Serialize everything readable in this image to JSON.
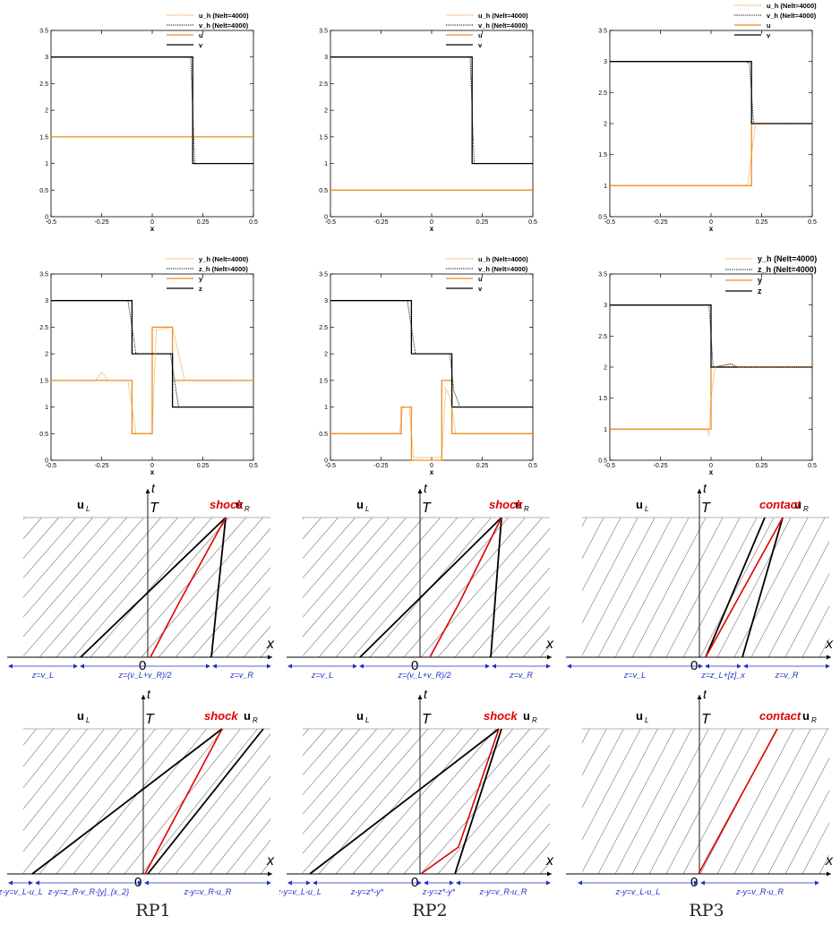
{
  "colors": {
    "numerical": "#f08c1e",
    "exact": "#f08c1e",
    "black": "#000000",
    "wave_red": "#e00000",
    "region_blue": "#1c2fc9",
    "grey": "#777777"
  },
  "chart_data": [
    {
      "id": "p11",
      "type": "line",
      "xlim": [
        -0.5,
        0.5
      ],
      "ylim": [
        0,
        3.5
      ],
      "xlabel": "x",
      "xticks": [
        "-0.5",
        "-0.25",
        "0",
        "0.25",
        "0.5"
      ],
      "yticks": [
        "0",
        "0.5",
        "1",
        "1.5",
        "2",
        "2.5",
        "3",
        "3.5"
      ],
      "legend": [
        "u_h (Nelt=4000)",
        "v_h (Nelt=4000)",
        "u",
        "v"
      ],
      "series": [
        {
          "name": "u",
          "role": "exact",
          "color": "orange",
          "points": [
            [
              -0.5,
              1.5
            ],
            [
              0.5,
              1.5
            ]
          ]
        },
        {
          "name": "v",
          "role": "exact",
          "color": "black",
          "points": [
            [
              -0.5,
              3
            ],
            [
              0.2,
              3
            ],
            [
              0.2,
              1
            ],
            [
              0.5,
              1
            ]
          ]
        },
        {
          "name": "u_h (Nelt=4000)",
          "role": "num",
          "color": "orange",
          "points": [
            [
              -0.5,
              1.5
            ],
            [
              0.5,
              1.5
            ]
          ]
        },
        {
          "name": "v_h (Nelt=4000)",
          "role": "num",
          "color": "black",
          "points": [
            [
              -0.5,
              3
            ],
            [
              0.19,
              3
            ],
            [
              0.2,
              2
            ],
            [
              0.21,
              1
            ],
            [
              0.5,
              1
            ]
          ]
        }
      ]
    },
    {
      "id": "p12",
      "type": "line",
      "xlim": [
        -0.5,
        0.5
      ],
      "ylim": [
        0,
        3.5
      ],
      "xlabel": "x",
      "xticks": [
        "-0.5",
        "-0.25",
        "0",
        "0.25",
        "0.5"
      ],
      "yticks": [
        "0",
        "0.5",
        "1",
        "1.5",
        "2",
        "2.5",
        "3",
        "3.5"
      ],
      "legend": [
        "u_h (Nelt=4000)",
        "v_h (Nelt=4000)",
        "u",
        "v"
      ],
      "series": [
        {
          "name": "u",
          "role": "exact",
          "color": "orange",
          "points": [
            [
              -0.5,
              0.5
            ],
            [
              0.5,
              0.5
            ]
          ]
        },
        {
          "name": "v",
          "role": "exact",
          "color": "black",
          "points": [
            [
              -0.5,
              3
            ],
            [
              0.2,
              3
            ],
            [
              0.2,
              1
            ],
            [
              0.5,
              1
            ]
          ]
        },
        {
          "name": "u_h (Nelt=4000)",
          "role": "num",
          "color": "orange",
          "points": [
            [
              -0.5,
              0.5
            ],
            [
              0.5,
              0.5
            ]
          ]
        },
        {
          "name": "v_h (Nelt=4000)",
          "role": "num",
          "color": "black",
          "points": [
            [
              -0.5,
              3
            ],
            [
              0.19,
              3
            ],
            [
              0.2,
              2
            ],
            [
              0.21,
              1
            ],
            [
              0.5,
              1
            ]
          ]
        }
      ]
    },
    {
      "id": "p13",
      "type": "line",
      "xlim": [
        -0.5,
        0.5
      ],
      "ylim": [
        0.5,
        3.5
      ],
      "xlabel": "x",
      "xticks": [
        "-0.5",
        "-0.25",
        "0",
        "0.25",
        "0.5"
      ],
      "yticks": [
        "0.5",
        "1",
        "1.5",
        "2",
        "2.5",
        "3",
        "3.5"
      ],
      "legend": [
        "u_h (Nelt=4000)",
        "v_h (Nelt=4000)",
        "u",
        "v"
      ],
      "series": [
        {
          "name": "u",
          "role": "exact",
          "color": "orange",
          "points": [
            [
              -0.5,
              1
            ],
            [
              0.2,
              1
            ],
            [
              0.2,
              2
            ],
            [
              0.5,
              2
            ]
          ]
        },
        {
          "name": "v",
          "role": "exact",
          "color": "black",
          "points": [
            [
              -0.5,
              3
            ],
            [
              0.2,
              3
            ],
            [
              0.2,
              2
            ],
            [
              0.5,
              2
            ]
          ]
        },
        {
          "name": "u_h (Nelt=4000)",
          "role": "num",
          "color": "orange",
          "points": [
            [
              -0.5,
              1
            ],
            [
              0.18,
              1
            ],
            [
              0.2,
              1.5
            ],
            [
              0.22,
              2
            ],
            [
              0.5,
              2
            ]
          ]
        },
        {
          "name": "v_h (Nelt=4000)",
          "role": "num",
          "color": "black",
          "points": [
            [
              -0.5,
              3
            ],
            [
              0.17,
              3
            ],
            [
              0.19,
              2.97
            ],
            [
              0.21,
              2
            ],
            [
              0.5,
              2
            ]
          ]
        }
      ]
    },
    {
      "id": "p21",
      "type": "line",
      "xlim": [
        -0.5,
        0.5
      ],
      "ylim": [
        0,
        3.5
      ],
      "xlabel": "x",
      "xticks": [
        "-0.5",
        "-0.25",
        "0",
        "0.25",
        "0.5"
      ],
      "yticks": [
        "0",
        "0.5",
        "1",
        "1.5",
        "2",
        "2.5",
        "3",
        "3.5"
      ],
      "legend": [
        "y_h (Nelt=4000)",
        "z_h (Nelt=4000)",
        "y",
        "z"
      ],
      "series": [
        {
          "name": "y",
          "role": "exact",
          "color": "orange",
          "points": [
            [
              -0.5,
              1.5
            ],
            [
              -0.1,
              1.5
            ],
            [
              -0.1,
              0.5
            ],
            [
              0,
              0.5
            ],
            [
              0,
              2.5
            ],
            [
              0.1,
              2.5
            ],
            [
              0.1,
              1.5
            ],
            [
              0.5,
              1.5
            ]
          ]
        },
        {
          "name": "z",
          "role": "exact",
          "color": "black",
          "points": [
            [
              -0.5,
              3
            ],
            [
              -0.1,
              3
            ],
            [
              -0.1,
              2
            ],
            [
              0.1,
              2
            ],
            [
              0.1,
              1
            ],
            [
              0.5,
              1
            ]
          ]
        },
        {
          "name": "y_h (Nelt=4000)",
          "role": "num",
          "color": "orange",
          "points": [
            [
              -0.5,
              1.5
            ],
            [
              -0.28,
              1.5
            ],
            [
              -0.25,
              1.65
            ],
            [
              -0.22,
              1.5
            ],
            [
              -0.12,
              1.5
            ],
            [
              -0.1,
              1
            ],
            [
              -0.08,
              0.5
            ],
            [
              0,
              0.5
            ],
            [
              0.01,
              1.5
            ],
            [
              0.02,
              2.45
            ],
            [
              0.1,
              2.5
            ],
            [
              0.13,
              2
            ],
            [
              0.16,
              1.5
            ],
            [
              0.5,
              1.5
            ]
          ]
        },
        {
          "name": "z_h (Nelt=4000)",
          "role": "num",
          "color": "black",
          "points": [
            [
              -0.5,
              3
            ],
            [
              -0.12,
              3
            ],
            [
              -0.1,
              2.5
            ],
            [
              -0.08,
              2
            ],
            [
              0.09,
              2
            ],
            [
              0.11,
              1.5
            ],
            [
              0.13,
              1
            ],
            [
              0.5,
              1
            ]
          ]
        }
      ]
    },
    {
      "id": "p22",
      "type": "line",
      "xlim": [
        -0.5,
        0.5
      ],
      "ylim": [
        0,
        3.5
      ],
      "xlabel": "x",
      "xticks": [
        "-0.5",
        "-0.25",
        "0",
        "0.25",
        "0.5"
      ],
      "yticks": [
        "0",
        "0.5",
        "1",
        "1.5",
        "2",
        "2.5",
        "3",
        "3.5"
      ],
      "legend": [
        "u_h (Nelt=4000)",
        "v_h (Nelt=4000)",
        "u",
        "v"
      ],
      "series": [
        {
          "name": "u",
          "role": "exact",
          "color": "orange",
          "points": [
            [
              -0.5,
              0.5
            ],
            [
              -0.15,
              0.5
            ],
            [
              -0.15,
              1
            ],
            [
              -0.1,
              1
            ],
            [
              -0.1,
              0
            ],
            [
              0.05,
              0
            ],
            [
              0.05,
              1.5
            ],
            [
              0.1,
              1.5
            ],
            [
              0.1,
              0.5
            ],
            [
              0.5,
              0.5
            ]
          ]
        },
        {
          "name": "v",
          "role": "exact",
          "color": "black",
          "points": [
            [
              -0.5,
              3
            ],
            [
              -0.1,
              3
            ],
            [
              -0.1,
              2
            ],
            [
              0.1,
              2
            ],
            [
              0.1,
              1
            ],
            [
              0.5,
              1
            ]
          ]
        },
        {
          "name": "u_h (Nelt=4000)",
          "role": "num",
          "color": "orange",
          "points": [
            [
              -0.5,
              0.5
            ],
            [
              -0.16,
              0.5
            ],
            [
              -0.14,
              1
            ],
            [
              -0.11,
              1
            ],
            [
              -0.09,
              0.05
            ],
            [
              0.05,
              0.05
            ],
            [
              0.07,
              1.35
            ],
            [
              0.09,
              1.2
            ],
            [
              0.12,
              0.5
            ],
            [
              0.5,
              0.5
            ]
          ]
        },
        {
          "name": "v_h (Nelt=4000)",
          "role": "num",
          "color": "black",
          "points": [
            [
              -0.5,
              3
            ],
            [
              -0.12,
              3
            ],
            [
              -0.1,
              2.5
            ],
            [
              -0.08,
              2
            ],
            [
              0.09,
              2
            ],
            [
              0.11,
              1.3
            ],
            [
              0.14,
              1
            ],
            [
              0.5,
              1
            ]
          ]
        }
      ]
    },
    {
      "id": "p23",
      "type": "line",
      "xlim": [
        -0.5,
        0.5
      ],
      "ylim": [
        0.5,
        3.5
      ],
      "xlabel": "x",
      "xticks": [
        "-0.5",
        "-0.25",
        "0",
        "0.25",
        "0.5"
      ],
      "yticks": [
        "0.5",
        "1",
        "1.5",
        "2",
        "2.5",
        "3",
        "3.5"
      ],
      "legend": [
        "y_h (Nelt=4000)",
        "z_h (Nelt=4000)",
        "y",
        "z"
      ],
      "series": [
        {
          "name": "y",
          "role": "exact",
          "color": "orange",
          "points": [
            [
              -0.5,
              1
            ],
            [
              0,
              1
            ],
            [
              0,
              2
            ],
            [
              0.5,
              2
            ]
          ]
        },
        {
          "name": "z",
          "role": "exact",
          "color": "black",
          "points": [
            [
              -0.5,
              3
            ],
            [
              0,
              3
            ],
            [
              0,
              2
            ],
            [
              0.5,
              2
            ]
          ]
        },
        {
          "name": "y_h (Nelt=4000)",
          "role": "num",
          "color": "orange",
          "points": [
            [
              -0.5,
              1
            ],
            [
              -0.02,
              1
            ],
            [
              -0.01,
              0.9
            ],
            [
              0,
              1.5
            ],
            [
              0.02,
              2
            ],
            [
              0.05,
              2.02
            ],
            [
              0.1,
              2.05
            ],
            [
              0.13,
              2
            ],
            [
              0.5,
              2
            ]
          ]
        },
        {
          "name": "z_h (Nelt=4000)",
          "role": "num",
          "color": "black",
          "points": [
            [
              -0.5,
              3
            ],
            [
              -0.01,
              3
            ],
            [
              0,
              2.5
            ],
            [
              0.01,
              2
            ],
            [
              0.1,
              2.05
            ],
            [
              0.13,
              2
            ],
            [
              0.5,
              2
            ]
          ]
        }
      ]
    }
  ],
  "wave_diagrams": [
    {
      "id": "w31",
      "labels": {
        "t": "t",
        "T": "T",
        "x": "x",
        "origin": "0",
        "uL": "u",
        "uLsub": "L",
        "uR": "u",
        "uRsub": "R",
        "wave": "shock"
      }
    },
    {
      "id": "w32",
      "labels": {
        "t": "t",
        "T": "T",
        "x": "x",
        "origin": "0",
        "uL": "u",
        "uLsub": "L",
        "uR": "u",
        "uRsub": "R",
        "wave": "shock"
      }
    },
    {
      "id": "w33",
      "labels": {
        "t": "t",
        "T": "T",
        "x": "x",
        "origin": "0",
        "uL": "u",
        "uLsub": "L",
        "uR": "u",
        "uRsub": "R",
        "wave": "contact"
      }
    },
    {
      "id": "w41",
      "labels": {
        "t": "t",
        "T": "T",
        "x": "x",
        "origin": "0",
        "uL": "u",
        "uLsub": "L",
        "uR": "u",
        "uRsub": "R",
        "wave": "shock"
      }
    },
    {
      "id": "w42",
      "labels": {
        "t": "t",
        "T": "T",
        "x": "x",
        "origin": "0",
        "uL": "u",
        "uLsub": "L",
        "uR": "u",
        "uRsub": "R",
        "wave": "shock"
      }
    },
    {
      "id": "w43",
      "labels": {
        "t": "t",
        "T": "T",
        "x": "x",
        "origin": "0",
        "uL": "u",
        "uLsub": "L",
        "uR": "u",
        "uRsub": "R",
        "wave": "contact"
      }
    }
  ],
  "region_labels": {
    "w31": [
      "z=v_L",
      "z=(v_L+v_R)/2",
      "z=v_R"
    ],
    "w32": [
      "z=v_L",
      "z=(v_L+v_R)/2",
      "z=v_R"
    ],
    "w33": [
      "z=v_L",
      "z=z_L+[z]_x",
      "z=v_R"
    ],
    "w41": [
      "z-y=v_L-u_L",
      "z-y=z_R-v_R-[y]_{x_2}",
      "z-y=v_R-u_R"
    ],
    "w42": [
      "z-y=v_L-u_L",
      "z-y=z*-y*",
      "z-y=z*-y*",
      "z-y=v_R-u_R"
    ],
    "w43": [
      "z-y=v_L-u_L",
      "z-y=v_R-u_R"
    ]
  },
  "captions": [
    "RP1",
    "RP2",
    "RP3"
  ]
}
